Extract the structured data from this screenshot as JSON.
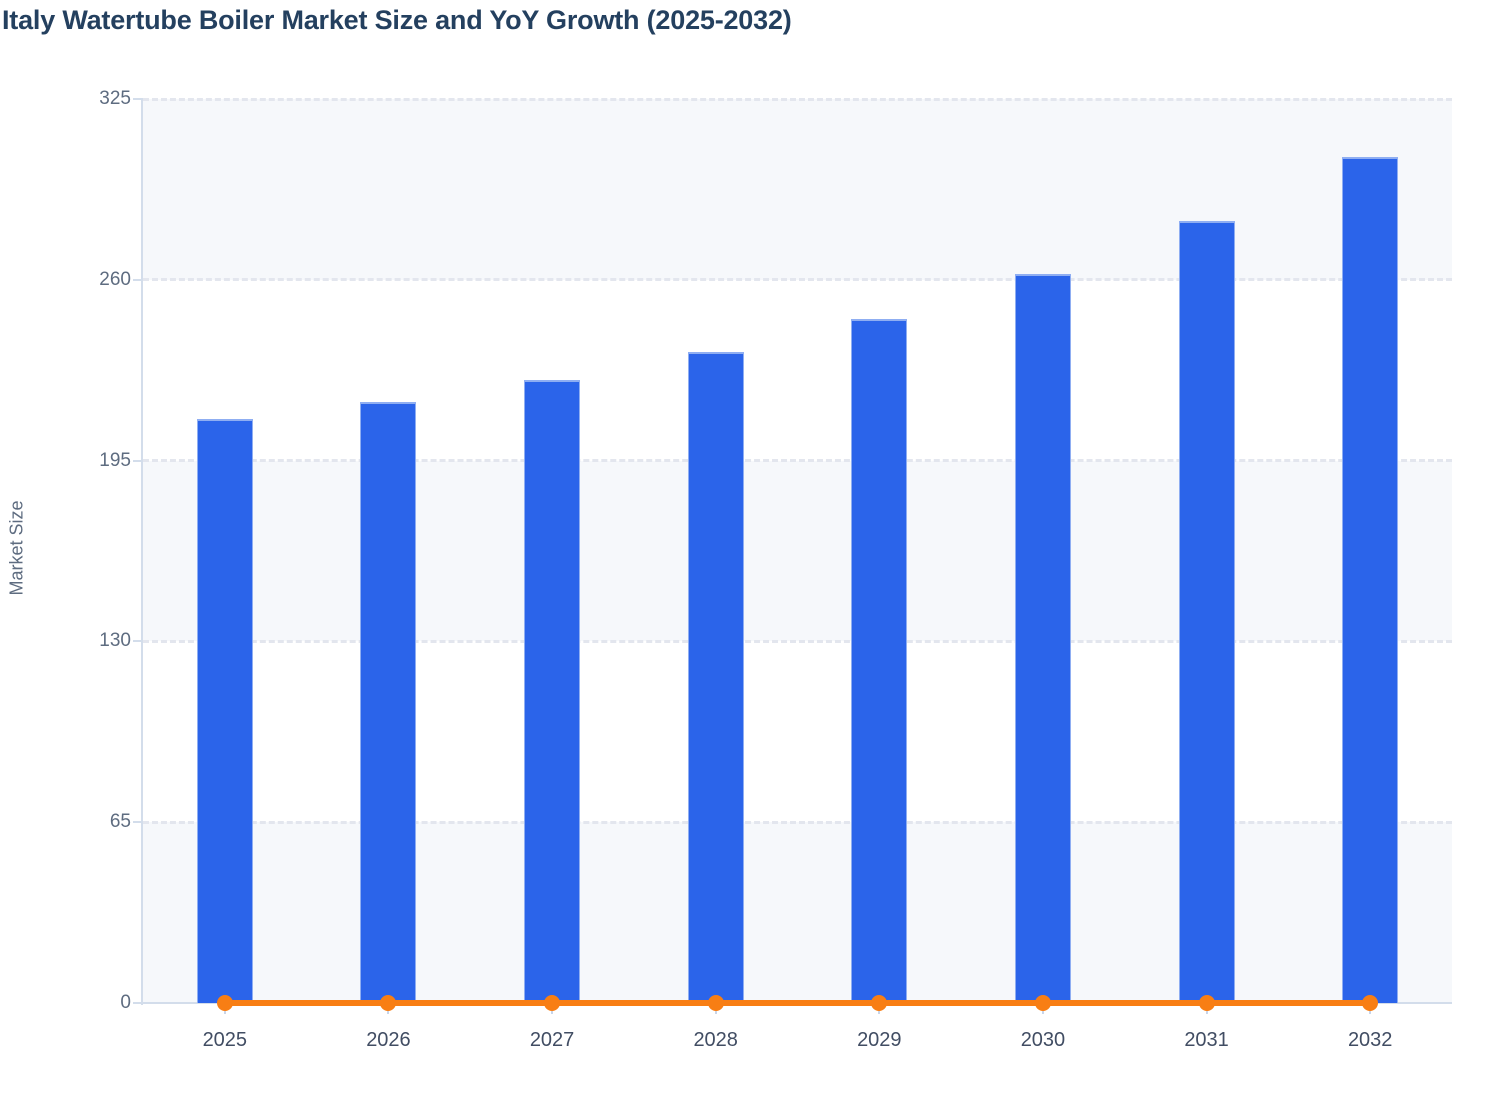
{
  "title": "Italy Watertube Boiler Market Size and YoY Growth (2025-2032)",
  "y_axis_title": "Market Size",
  "chart_data": {
    "type": "bar",
    "title": "Italy Watertube Boiler Market Size and YoY Growth (2025-2032)",
    "categories": [
      "2025",
      "2026",
      "2027",
      "2028",
      "2029",
      "2030",
      "2031",
      "2032"
    ],
    "series": [
      {
        "name": "Market Size",
        "type": "bar",
        "values": [
          210,
          216,
          224,
          234,
          246,
          262,
          281,
          304
        ]
      },
      {
        "name": "YoY Growth",
        "type": "line",
        "values": [
          0,
          0,
          0,
          0,
          0,
          0,
          0,
          0
        ]
      }
    ],
    "xlabel": "",
    "ylabel": "Market Size",
    "y_ticks": [
      0,
      65,
      130,
      195,
      260,
      325
    ],
    "ylim": [
      0,
      325
    ],
    "grid": "horizontal-dashed",
    "legend": "none",
    "colors": {
      "bar": "#2B64EA",
      "bar_border": "#8FAEF2",
      "line": "#F87E14",
      "band": "#F6F8FB",
      "gridline": "#E3E6EE",
      "axis": "#D3DDEB",
      "x_tick_mark": "#C9D5E9",
      "y_tick_label": "#5E6C80",
      "x_tick_label": "#414D63",
      "title": "#24405F"
    }
  }
}
